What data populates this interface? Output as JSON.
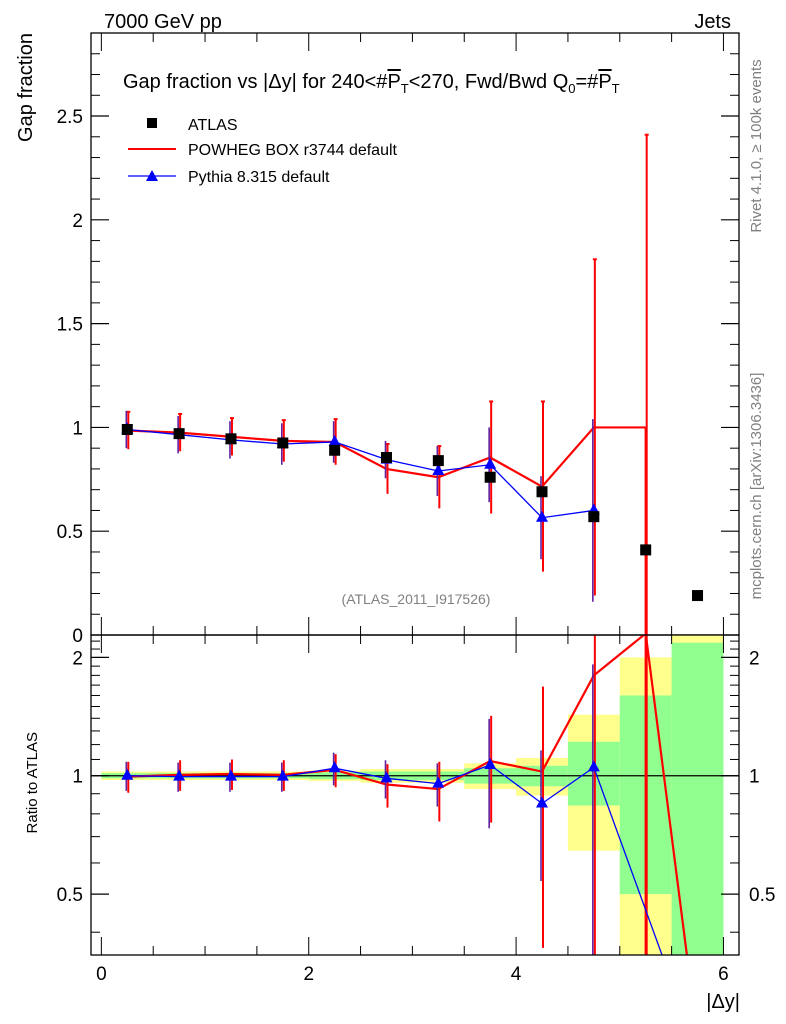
{
  "header": {
    "left": "7000 GeV pp",
    "right": "Jets"
  },
  "side": {
    "rivet": "Rivet 4.1.0, ≥ 100k events",
    "mcplots": "mcplots.cern.ch [arXiv:1306.3436]"
  },
  "chart_data": [
    {
      "type": "scatter",
      "title": "Gap fraction vs |Δy| for 240<#P̅T<270, Fwd/Bwd Q0=#P̅T",
      "title_parts": {
        "a": "Gap fraction vs |Δy| for 240<#",
        "p": "P",
        "t": "T",
        "b": "<270, Fwd/Bwd Q",
        "zero": "0",
        "c": "=#"
      },
      "ylabel": "Gap fraction",
      "xlim": [
        -0.1,
        6.15
      ],
      "ylim": [
        0,
        2.9
      ],
      "yticks": [
        0.5,
        1,
        1.5,
        2,
        2.5
      ],
      "ytick_labels": [
        "0.5",
        "1",
        "1.5",
        "2",
        "2.5"
      ],
      "clipped_bottom_tick": "0",
      "watermark": "(ATLAS_2011_I917526)",
      "legend_position": "top-left",
      "series": [
        {
          "name": "ATLAS",
          "style": "markers",
          "color": "#000000",
          "x": [
            0.25,
            0.75,
            1.25,
            1.75,
            2.25,
            2.75,
            3.25,
            3.75,
            4.25,
            4.75,
            5.25,
            5.75
          ],
          "y": [
            0.99,
            0.97,
            0.945,
            0.925,
            0.89,
            0.855,
            0.84,
            0.76,
            0.69,
            0.57,
            0.41,
            0.19
          ]
        },
        {
          "name": "POWHEG BOX r3744 default",
          "style": "histogram",
          "color": "#ff0000",
          "x": [
            0.25,
            0.75,
            1.25,
            1.75,
            2.25,
            2.75,
            3.25,
            3.75,
            4.25,
            4.75,
            5.25
          ],
          "y": [
            0.985,
            0.975,
            0.955,
            0.935,
            0.93,
            0.8,
            0.76,
            0.855,
            0.715,
            1.0,
            1.0
          ],
          "err": [
            0.09,
            0.09,
            0.09,
            0.1,
            0.11,
            0.12,
            0.15,
            0.27,
            0.41,
            0.81,
            1.41
          ]
        },
        {
          "name": "Pythia 8.315 default",
          "style": "line-triangles",
          "color": "#0000ff",
          "x": [
            0.25,
            0.75,
            1.25,
            1.75,
            2.25,
            2.75,
            3.25,
            3.75,
            4.25,
            4.75
          ],
          "y": [
            0.99,
            0.965,
            0.94,
            0.92,
            0.93,
            0.845,
            0.79,
            0.82,
            0.565,
            0.6
          ],
          "err": [
            0.09,
            0.09,
            0.09,
            0.1,
            0.1,
            0.09,
            0.12,
            0.18,
            0.2,
            0.44
          ]
        }
      ]
    },
    {
      "type": "line",
      "ylabel": "Ratio to ATLAS",
      "xlabel": "|Δy|",
      "xlim": [
        -0.1,
        6.15
      ],
      "ylim": [
        0.35,
        2.28
      ],
      "xticks": [
        0,
        2,
        4,
        6
      ],
      "xtick_labels": [
        "0",
        "2",
        "4",
        "6"
      ],
      "yticks": [
        0.5,
        1,
        2
      ],
      "ytick_labels": [
        "0.5",
        "1",
        "2"
      ],
      "reference_line": 1,
      "bins": [
        0,
        0.5,
        1,
        1.5,
        2,
        2.5,
        3,
        3.5,
        4,
        4.5,
        5,
        5.5,
        6
      ],
      "band_green": [
        [
          0.985,
          1.015
        ],
        [
          0.985,
          1.015
        ],
        [
          0.985,
          1.015
        ],
        [
          0.985,
          1.015
        ],
        [
          0.98,
          1.02
        ],
        [
          0.975,
          1.025
        ],
        [
          0.975,
          1.025
        ],
        [
          0.955,
          1.045
        ],
        [
          0.94,
          1.06
        ],
        [
          0.84,
          1.22
        ],
        [
          0.5,
          1.6
        ],
        [
          0.3,
          2.18
        ]
      ],
      "band_yellow": [
        [
          0.975,
          1.025
        ],
        [
          0.975,
          1.025
        ],
        [
          0.975,
          1.025
        ],
        [
          0.975,
          1.025
        ],
        [
          0.97,
          1.03
        ],
        [
          0.96,
          1.04
        ],
        [
          0.96,
          1.04
        ],
        [
          0.925,
          1.075
        ],
        [
          0.89,
          1.11
        ],
        [
          0.645,
          1.43
        ],
        [
          0.3,
          2.0
        ],
        [
          0.3,
          2.3
        ]
      ],
      "series": [
        {
          "name": "POWHEG BOX r3744 default",
          "color": "#ff0000",
          "x": [
            0.25,
            0.75,
            1.25,
            1.75,
            2.25,
            2.75,
            3.25,
            3.75,
            4.25,
            4.75,
            5.25,
            5.68
          ],
          "y": [
            0.995,
            1.005,
            1.01,
            1.005,
            1.035,
            0.95,
            0.925,
            1.09,
            1.025,
            1.8,
            2.3,
            0.3
          ],
          "err": [
            0.09,
            0.09,
            0.09,
            0.09,
            0.1,
            0.12,
            0.16,
            0.33,
            0.66,
            1.5,
            2.0,
            0
          ]
        },
        {
          "name": "Pythia 8.315 default",
          "color": "#0000ff",
          "x": [
            0.25,
            0.75,
            1.25,
            1.75,
            2.25,
            2.75,
            3.25,
            3.75,
            4.25,
            4.75,
            5.5
          ],
          "y": [
            1.0,
            0.995,
            0.995,
            0.995,
            1.045,
            0.985,
            0.955,
            1.065,
            0.85,
            1.05,
            0.3
          ],
          "err": [
            0.085,
            0.085,
            0.085,
            0.085,
            0.1,
            0.11,
            0.12,
            0.33,
            0.31,
            0.87,
            0
          ]
        }
      ]
    }
  ]
}
